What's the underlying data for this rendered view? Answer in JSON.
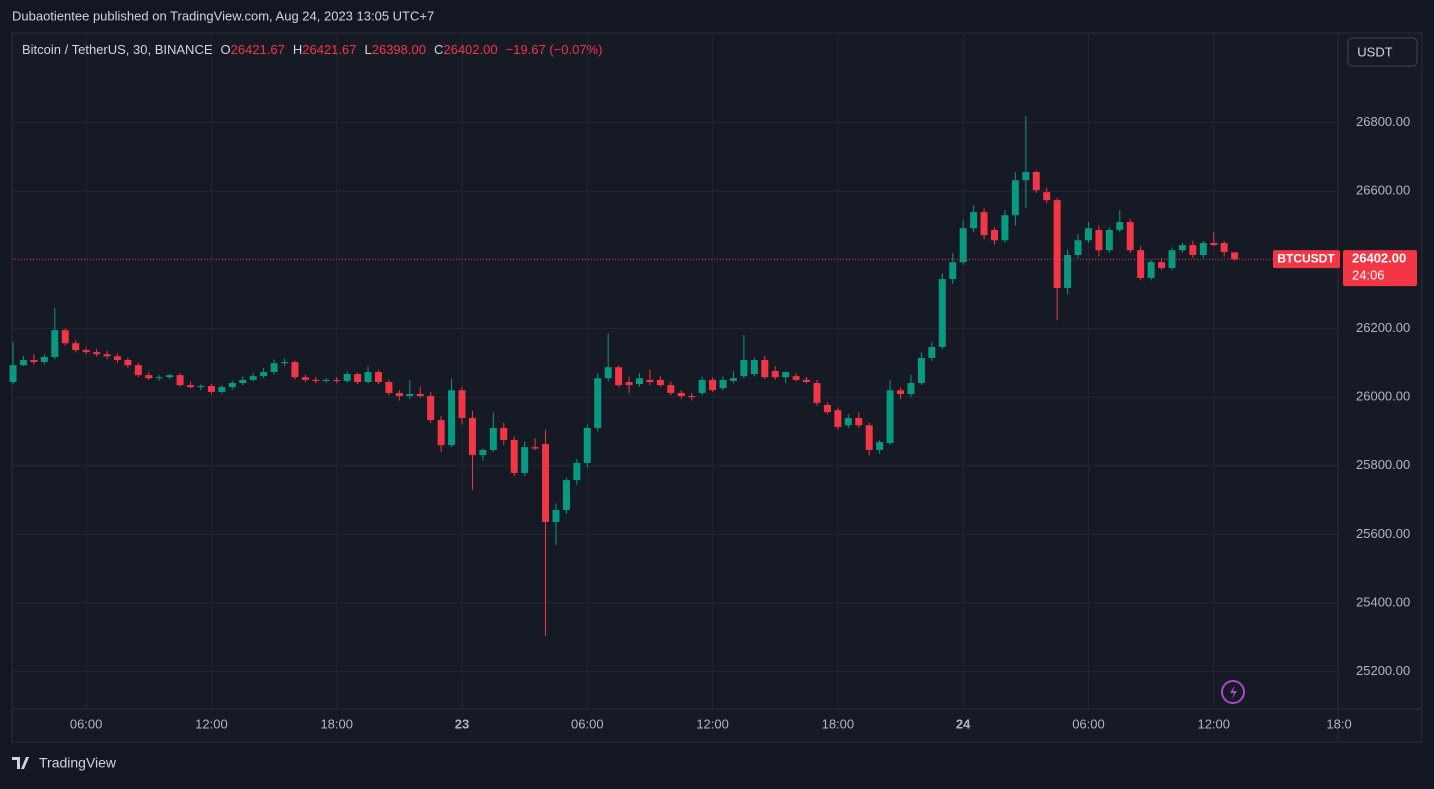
{
  "publisher_line": "Dubaotientee published on TradingView.com, Aug 24, 2023 13:05 UTC+7",
  "currency_button": "USDT",
  "logo_text": "TradingView",
  "ohlc_legend": [
    {
      "label": "O",
      "value": "26421.67"
    },
    {
      "label": "H",
      "value": "26421.67"
    },
    {
      "label": "L",
      "value": "26398.00"
    },
    {
      "label": "C",
      "value": "26402.00"
    }
  ],
  "change_text": "−19.67 (−0.07%)",
  "price_tag": {
    "symbol": "BTCUSDT",
    "price": "26402.00",
    "countdown": "24:06"
  },
  "chart_data": {
    "type": "candlestick",
    "title": "Bitcoin / TetherUS, 30, BINANCE",
    "up_color": "#089981",
    "down_color": "#f23645",
    "grid": true,
    "open": [
      26044,
      26093,
      26108,
      26102,
      26117,
      26195,
      26157,
      26137,
      26131,
      26125,
      26119,
      26108,
      26093,
      26064,
      26055,
      26058,
      26064,
      26035,
      26029,
      26032,
      26015,
      26029,
      26041,
      26050,
      26061,
      26073,
      26099,
      26102,
      26058,
      26050,
      26047,
      26050,
      26047,
      26067,
      26044,
      26073,
      26044,
      26012,
      26003,
      26009,
      26003,
      25933,
      25860,
      26020,
      25939,
      25831,
      25846,
      25910,
      25875,
      25779,
      25854,
      25863,
      25636,
      25671,
      25758,
      25808,
      25910,
      26055,
      26087,
      26044,
      26038,
      26050,
      26050,
      26035,
      26012,
      26003,
      26012,
      26050,
      26026,
      26047,
      26061,
      26067,
      26108,
      26076,
      26058,
      26061,
      26050,
      26041,
      25977,
      25962,
      25918,
      25939,
      25918,
      25846,
      25866,
      26020,
      26009,
      26041,
      26114,
      26146,
      26344,
      26393,
      26492,
      26539,
      26487,
      26457,
      26530,
      26632,
      26656,
      26597,
      26574,
      26318,
      26414,
      26457,
      26487,
      26428,
      26487,
      26510,
      26428,
      26347,
      26393,
      26376,
      26428,
      26443,
      26414,
      26449,
      26449,
      26421.67
    ],
    "high": [
      26160,
      26120,
      26125,
      26125,
      26259,
      26200,
      26165,
      26145,
      26140,
      26135,
      26128,
      26115,
      26100,
      26072,
      26065,
      26068,
      26070,
      26045,
      26038,
      26038,
      26035,
      26048,
      26060,
      26070,
      26085,
      26110,
      26112,
      26106,
      26065,
      26058,
      26056,
      26058,
      26075,
      26072,
      26090,
      26078,
      26050,
      26020,
      26050,
      26030,
      26015,
      25945,
      26055,
      26030,
      25960,
      25850,
      25955,
      25925,
      25885,
      25870,
      25880,
      25905,
      25690,
      25765,
      25820,
      25920,
      26070,
      26186,
      26092,
      26060,
      26070,
      26080,
      26060,
      26045,
      26020,
      26012,
      26060,
      26058,
      26060,
      26075,
      26181,
      26115,
      26120,
      26090,
      26075,
      26070,
      26058,
      26050,
      25985,
      25970,
      25950,
      25955,
      25925,
      25875,
      26050,
      26028,
      26065,
      26130,
      26160,
      26360,
      26420,
      26515,
      26560,
      26550,
      26495,
      26545,
      26655,
      26819,
      26660,
      26610,
      26580,
      26430,
      26475,
      26510,
      26500,
      26495,
      26545,
      26520,
      26440,
      26400,
      26405,
      26435,
      26450,
      26455,
      26455,
      26480,
      26455,
      26421.67
    ],
    "low": [
      26038,
      26090,
      26095,
      26095,
      26110,
      26150,
      26130,
      26125,
      26118,
      26110,
      26100,
      26085,
      26058,
      26050,
      26048,
      26052,
      26030,
      26025,
      26020,
      26008,
      26010,
      26022,
      26035,
      26045,
      26055,
      26066,
      26090,
      26052,
      26044,
      26040,
      26042,
      26040,
      26042,
      26038,
      26040,
      26038,
      26005,
      25990,
      25995,
      25998,
      25925,
      25840,
      25855,
      25920,
      25729,
      25815,
      25840,
      25860,
      25770,
      25770,
      25845,
      25304,
      25569,
      25660,
      25745,
      25795,
      25900,
      26045,
      26030,
      26010,
      26030,
      26035,
      26030,
      26005,
      25995,
      25990,
      26005,
      26015,
      26020,
      26040,
      26055,
      26060,
      26052,
      26050,
      26040,
      26045,
      26040,
      25975,
      25950,
      25905,
      25910,
      25910,
      25830,
      25835,
      25860,
      25995,
      26000,
      26035,
      26105,
      26140,
      26330,
      26385,
      26480,
      26460,
      26445,
      26450,
      26500,
      26550,
      26595,
      26565,
      26224,
      26300,
      26405,
      26450,
      26410,
      26420,
      26480,
      26420,
      26340,
      26340,
      26370,
      26370,
      26420,
      26405,
      26405,
      26440,
      26410,
      26398
    ],
    "close": [
      26093,
      26108,
      26102,
      26117,
      26195,
      26157,
      26137,
      26131,
      26125,
      26119,
      26108,
      26093,
      26064,
      26055,
      26058,
      26064,
      26035,
      26029,
      26032,
      26015,
      26029,
      26041,
      26050,
      26061,
      26073,
      26099,
      26102,
      26058,
      26050,
      26047,
      26050,
      26047,
      26067,
      26044,
      26073,
      26044,
      26012,
      26003,
      26009,
      26003,
      25933,
      25860,
      26020,
      25939,
      25831,
      25846,
      25910,
      25875,
      25779,
      25854,
      25850,
      25636,
      25671,
      25758,
      25808,
      25910,
      26055,
      26087,
      26035,
      26035,
      26055,
      26044,
      26035,
      26012,
      26003,
      26000,
      26050,
      26020,
      26050,
      26055,
      26108,
      26108,
      26058,
      26058,
      26073,
      26050,
      26044,
      25983,
      25956,
      25913,
      25939,
      25918,
      25846,
      25869,
      26020,
      26009,
      26041,
      26114,
      26146,
      26344,
      26393,
      26492,
      26539,
      26472,
      26457,
      26530,
      26632,
      26656,
      26603,
      26574,
      26318,
      26414,
      26457,
      26492,
      26428,
      26487,
      26510,
      26428,
      26347,
      26393,
      26376,
      26428,
      26443,
      26414,
      26449,
      26443,
      26423,
      26402
    ],
    "xlim": [
      -0.1,
      126.9
    ],
    "xticks": [
      {
        "value": 7,
        "label": "06:00"
      },
      {
        "value": 19,
        "label": "12:00"
      },
      {
        "value": 31,
        "label": "18:00"
      },
      {
        "value": 43,
        "label": "23"
      },
      {
        "value": 55,
        "label": "06:00"
      },
      {
        "value": 67,
        "label": "12:00"
      },
      {
        "value": 79,
        "label": "18:00"
      },
      {
        "value": 91,
        "label": "24"
      },
      {
        "value": 103,
        "label": "06:00"
      },
      {
        "value": 115,
        "label": "12:00"
      },
      {
        "value": 127,
        "label": "18:0"
      }
    ],
    "ylim": [
      25091,
      27061
    ],
    "yticks": [
      {
        "value": 25200,
        "label": "25200.00"
      },
      {
        "value": 25400,
        "label": "25400.00"
      },
      {
        "value": 25600,
        "label": "25600.00"
      },
      {
        "value": 25800,
        "label": "25800.00"
      },
      {
        "value": 26000,
        "label": "26000.00"
      },
      {
        "value": 26200,
        "label": "26200.00"
      },
      {
        "value": 26400,
        "label": "26400.00"
      },
      {
        "value": 26600,
        "label": "26600.00"
      },
      {
        "value": 26800,
        "label": "26800.00"
      }
    ]
  }
}
